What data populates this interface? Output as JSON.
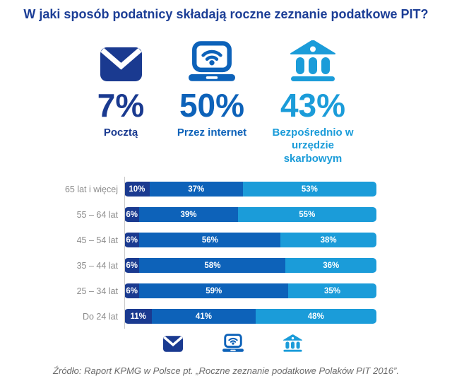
{
  "title": "W jaki sposób podatnicy składają roczne zeznanie podatkowe PIT?",
  "colors": {
    "navy": "#1a3a90",
    "blue": "#0d62b9",
    "light_blue": "#1b9cd9",
    "title_navy": "#1c3e96",
    "row_label_gray": "#8c8c8c",
    "source_gray": "#6b6b6b",
    "axis_gray": "#c9c9c9"
  },
  "methods": [
    {
      "id": "post",
      "icon": "envelope-icon",
      "value": "7%",
      "label": "Pocztą",
      "color": "#1a3a90"
    },
    {
      "id": "internet",
      "icon": "laptop-wifi-icon",
      "value": "50%",
      "label": "Przez internet",
      "color": "#0d62b9"
    },
    {
      "id": "office",
      "icon": "bank-icon",
      "value": "43%",
      "label": "Bezpośrednio w urzędzie skarbowym",
      "color": "#1b9cd9"
    }
  ],
  "chart_data": {
    "type": "bar",
    "stacked": true,
    "orientation": "horizontal",
    "categories": [
      "65 lat i więcej",
      "55 – 64 lat",
      "45 – 54 lat",
      "35 – 44 lat",
      "25 – 34 lat",
      "Do 24 lat"
    ],
    "series": [
      {
        "id": "post",
        "name": "Pocztą",
        "color": "#1a3a90",
        "values": [
          10,
          6,
          6,
          6,
          6,
          11
        ]
      },
      {
        "id": "internet",
        "name": "Przez internet",
        "color": "#0d62b9",
        "values": [
          37,
          39,
          56,
          58,
          59,
          41
        ]
      },
      {
        "id": "office",
        "name": "Bezpośrednio w urzędzie skarbowym",
        "color": "#1b9cd9",
        "values": [
          53,
          55,
          38,
          36,
          35,
          48
        ]
      }
    ],
    "value_suffix": "%",
    "xlim": [
      0,
      100
    ],
    "grid": false,
    "legend_position": "bottom-icons"
  },
  "legend": {
    "icons": [
      "envelope-icon",
      "laptop-wifi-icon",
      "bank-icon"
    ]
  },
  "source": "Źródło: Raport KPMG w Polsce pt. „Roczne zeznanie podatkowe Polaków PIT 2016”."
}
